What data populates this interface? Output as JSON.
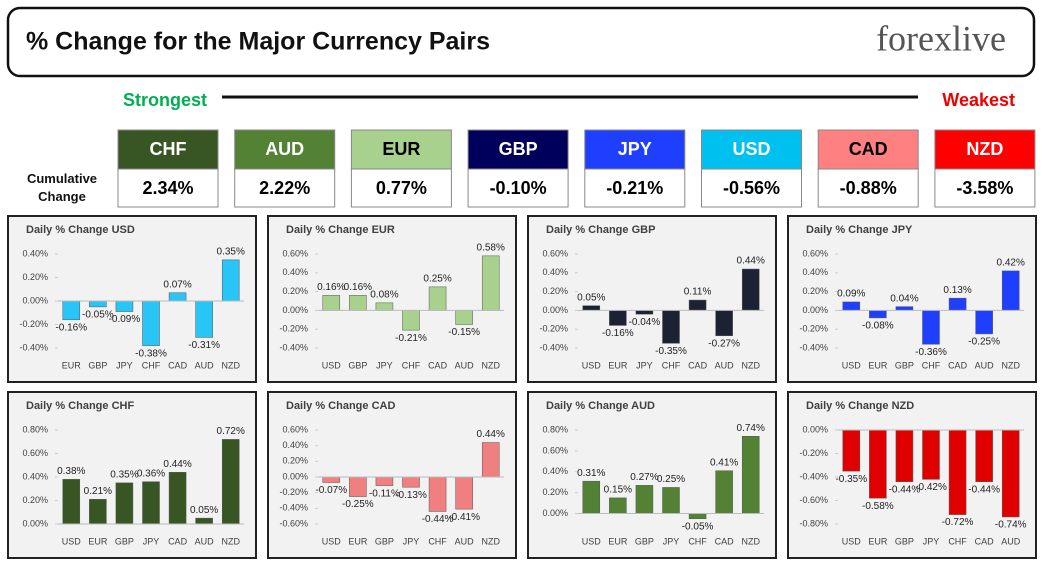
{
  "header": {
    "title": "% Change for the Major Currency Pairs",
    "logo": "forexlive"
  },
  "strongest": "Strongest",
  "weakest": "Weakest",
  "cumulative_label": "Cumulative Change",
  "currencies": [
    {
      "name": "CHF",
      "change": "2.34%",
      "color": "#375623"
    },
    {
      "name": "AUD",
      "change": "2.22%",
      "color": "#548235"
    },
    {
      "name": "EUR",
      "change": "0.77%",
      "color": "#a9d18e"
    },
    {
      "name": "GBP",
      "change": "-0.10%",
      "color": "#00005c"
    },
    {
      "name": "JPY",
      "change": "-0.21%",
      "color": "#1f3fff"
    },
    {
      "name": "USD",
      "change": "-0.56%",
      "color": "#00c0f0"
    },
    {
      "name": "CAD",
      "change": "-0.88%",
      "color": "#ff8080"
    },
    {
      "name": "NZD",
      "change": "-3.58%",
      "color": "#ff0000"
    }
  ],
  "chart_data": [
    {
      "type": "bar",
      "title": "Daily % Change USD",
      "categories": [
        "EUR",
        "GBP",
        "JPY",
        "CHF",
        "CAD",
        "AUD",
        "NZD"
      ],
      "values": [
        -0.16,
        -0.05,
        -0.09,
        -0.38,
        0.07,
        -0.31,
        0.35
      ],
      "value_labels": [
        "-0.16%",
        "-0.05%",
        "-0.09%",
        "-0.38%",
        "0.07%",
        "-0.31%",
        "0.35%"
      ],
      "color": "#29c5f6",
      "ylim": [
        -0.4,
        0.4
      ],
      "yticks": [
        {
          "value": -0.4,
          "label": "-0.40%"
        },
        {
          "value": -0.2,
          "label": "-0.20%"
        },
        {
          "value": 0,
          "label": "0.00%"
        },
        {
          "value": 0.2,
          "label": "0.20%"
        },
        {
          "value": 0.4,
          "label": "0.40%"
        }
      ]
    },
    {
      "type": "bar",
      "title": "Daily % Change EUR",
      "categories": [
        "USD",
        "GBP",
        "JPY",
        "CHF",
        "CAD",
        "AUD",
        "NZD"
      ],
      "values": [
        0.16,
        0.16,
        0.08,
        -0.21,
        0.25,
        -0.15,
        0.58
      ],
      "value_labels": [
        "0.16%",
        "0.16%",
        "0.08%",
        "-0.21%",
        "0.25%",
        "-0.15%",
        "0.58%"
      ],
      "color": "#a9d18e",
      "ylim": [
        -0.4,
        0.6
      ],
      "yticks": [
        {
          "value": -0.4,
          "label": "-0.40%"
        },
        {
          "value": -0.2,
          "label": "-0.20%"
        },
        {
          "value": 0,
          "label": "0.00%"
        },
        {
          "value": 0.2,
          "label": "0.20%"
        },
        {
          "value": 0.4,
          "label": "0.40%"
        },
        {
          "value": 0.6,
          "label": "0.60%"
        }
      ]
    },
    {
      "type": "bar",
      "title": "Daily % Change GBP",
      "categories": [
        "USD",
        "EUR",
        "JPY",
        "CHF",
        "CAD",
        "AUD",
        "NZD"
      ],
      "values": [
        0.05,
        -0.16,
        -0.04,
        -0.35,
        0.11,
        -0.27,
        0.44
      ],
      "value_labels": [
        "0.05%",
        "-0.16%",
        "-0.04%",
        "-0.35%",
        "0.11%",
        "-0.27%",
        "0.44%"
      ],
      "color": "#1c2233",
      "ylim": [
        -0.4,
        0.6
      ],
      "yticks": [
        {
          "value": -0.4,
          "label": "-0.40%"
        },
        {
          "value": -0.2,
          "label": "-0.20%"
        },
        {
          "value": 0,
          "label": "0.00%"
        },
        {
          "value": 0.2,
          "label": "0.20%"
        },
        {
          "value": 0.4,
          "label": "0.40%"
        },
        {
          "value": 0.6,
          "label": "0.60%"
        }
      ]
    },
    {
      "type": "bar",
      "title": "Daily % Change JPY",
      "categories": [
        "USD",
        "EUR",
        "GBP",
        "CHF",
        "CAD",
        "AUD",
        "NZD"
      ],
      "values": [
        0.09,
        -0.08,
        0.04,
        -0.36,
        0.13,
        -0.25,
        0.42
      ],
      "value_labels": [
        "0.09%",
        "-0.08%",
        "0.04%",
        "-0.36%",
        "0.13%",
        "-0.25%",
        "0.42%"
      ],
      "color": "#1f3fff",
      "ylim": [
        -0.4,
        0.6
      ],
      "yticks": [
        {
          "value": -0.4,
          "label": "-0.40%"
        },
        {
          "value": -0.2,
          "label": "-0.20%"
        },
        {
          "value": 0,
          "label": "0.00%"
        },
        {
          "value": 0.2,
          "label": "0.20%"
        },
        {
          "value": 0.4,
          "label": "0.40%"
        },
        {
          "value": 0.6,
          "label": "0.60%"
        }
      ]
    },
    {
      "type": "bar",
      "title": "Daily % Change CHF",
      "categories": [
        "USD",
        "EUR",
        "GBP",
        "JPY",
        "CAD",
        "AUD",
        "NZD"
      ],
      "values": [
        0.38,
        0.21,
        0.35,
        0.36,
        0.44,
        0.05,
        0.72
      ],
      "value_labels": [
        "0.38%",
        "0.21%",
        "0.35%",
        "0.36%",
        "0.44%",
        "0.05%",
        "0.72%"
      ],
      "color": "#375623",
      "ylim": [
        0,
        0.8
      ],
      "yticks": [
        {
          "value": 0,
          "label": "0.00%"
        },
        {
          "value": 0.2,
          "label": "0.20%"
        },
        {
          "value": 0.4,
          "label": "0.40%"
        },
        {
          "value": 0.6,
          "label": "0.60%"
        },
        {
          "value": 0.8,
          "label": "0.80%"
        }
      ]
    },
    {
      "type": "bar",
      "title": "Daily % Change CAD",
      "categories": [
        "USD",
        "EUR",
        "GBP",
        "JPY",
        "CHF",
        "AUD",
        "NZD"
      ],
      "values": [
        -0.07,
        -0.25,
        -0.11,
        -0.13,
        -0.44,
        -0.41,
        0.44
      ],
      "value_labels": [
        "-0.07%",
        "-0.25%",
        "-0.11%",
        "-0.13%",
        "-0.44%",
        "-0.41%",
        "0.44%"
      ],
      "color": "#f08080",
      "ylim": [
        -0.6,
        0.6
      ],
      "yticks": [
        {
          "value": -0.6,
          "label": "-0.60%"
        },
        {
          "value": -0.4,
          "label": "-0.40%"
        },
        {
          "value": -0.2,
          "label": "-0.20%"
        },
        {
          "value": 0,
          "label": "0.00%"
        },
        {
          "value": 0.2,
          "label": "0.20%"
        },
        {
          "value": 0.4,
          "label": "0.40%"
        },
        {
          "value": 0.6,
          "label": "0.60%"
        }
      ]
    },
    {
      "type": "bar",
      "title": "Daily % Change AUD",
      "categories": [
        "USD",
        "EUR",
        "GBP",
        "JPY",
        "CHF",
        "CAD",
        "NZD"
      ],
      "values": [
        0.31,
        0.15,
        0.27,
        0.25,
        -0.05,
        0.41,
        0.74
      ],
      "value_labels": [
        "0.31%",
        "0.15%",
        "0.27%",
        "0.25%",
        "-0.05%",
        "0.41%",
        "0.74%"
      ],
      "color": "#548235",
      "ylim": [
        -0.1,
        0.8
      ],
      "yticks": [
        {
          "value": 0,
          "label": "0.00%"
        },
        {
          "value": 0.2,
          "label": "0.20%"
        },
        {
          "value": 0.4,
          "label": "0.40%"
        },
        {
          "value": 0.6,
          "label": "0.60%"
        },
        {
          "value": 0.8,
          "label": "0.80%"
        }
      ]
    },
    {
      "type": "bar",
      "title": "Daily % Change NZD",
      "categories": [
        "USD",
        "EUR",
        "GBP",
        "JPY",
        "CHF",
        "CAD",
        "AUD"
      ],
      "values": [
        -0.35,
        -0.58,
        -0.44,
        -0.42,
        -0.72,
        -0.44,
        -0.74
      ],
      "value_labels": [
        "-0.35%",
        "-0.58%",
        "-0.44%",
        "-0.42%",
        "-0.72%",
        "-0.44%",
        "-0.74%"
      ],
      "color": "#e00000",
      "ylim": [
        -0.8,
        0
      ],
      "yticks": [
        {
          "value": -0.8,
          "label": "-0.80%"
        },
        {
          "value": -0.6,
          "label": "-0.60%"
        },
        {
          "value": -0.4,
          "label": "-0.40%"
        },
        {
          "value": -0.2,
          "label": "-0.20%"
        },
        {
          "value": 0,
          "label": "0.00%"
        }
      ]
    }
  ]
}
